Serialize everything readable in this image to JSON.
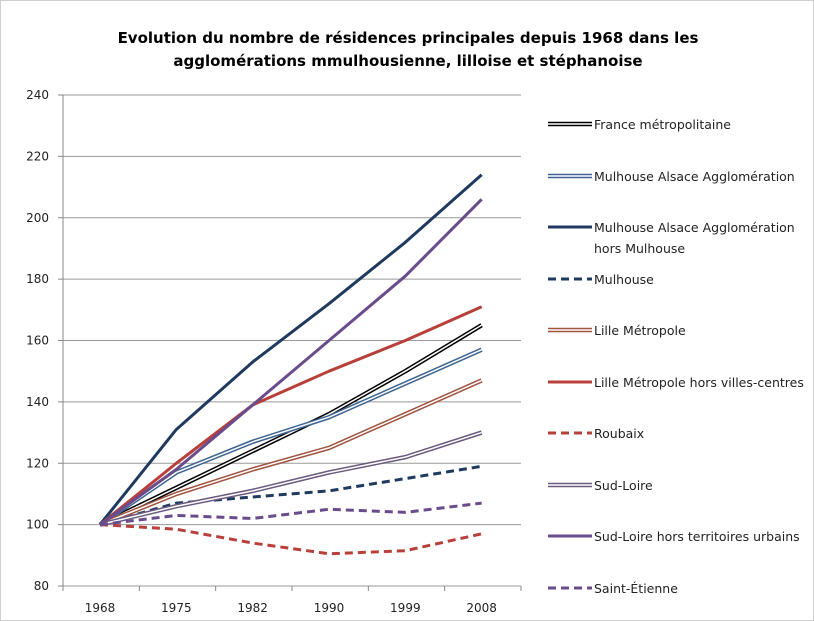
{
  "chart_data": {
    "type": "line",
    "title": "Evolution du nombre de résidences principales depuis 1968 dans les agglomérations mmulhousienne, lilloise et stéphanoise",
    "categories": [
      "1968",
      "1975",
      "1982",
      "1990",
      "1999",
      "2008"
    ],
    "ylim": [
      80,
      240
    ],
    "yticks": [
      80,
      100,
      120,
      140,
      160,
      180,
      200,
      220,
      240
    ],
    "grid": true,
    "legend": "right",
    "series": [
      {
        "name": "France métropolitaine",
        "color": "#000000",
        "style": "double",
        "values": [
          100,
          112,
          124,
          136,
          150,
          165
        ]
      },
      {
        "name": "Mulhouse Alsace Agglomération",
        "color": "#3d6491",
        "style": "double",
        "values": [
          100,
          117,
          127,
          135,
          146,
          157
        ]
      },
      {
        "name": "Mulhouse Alsace Agglomération hors Mulhouse",
        "color": "#1f3a5e",
        "style": "solid",
        "values": [
          100,
          131,
          153,
          172,
          192,
          214
        ]
      },
      {
        "name": "Mulhouse",
        "color": "#1f3a5e",
        "style": "dashed",
        "values": [
          100,
          107,
          109,
          111,
          115,
          119
        ]
      },
      {
        "name": "Lille Métropole",
        "color": "#a0533f",
        "style": "double",
        "values": [
          100,
          110,
          118,
          125,
          136,
          147
        ]
      },
      {
        "name": "Lille Métropole hors villes-centres",
        "color": "#b8403a",
        "style": "solid",
        "values": [
          100,
          120,
          139,
          150,
          160,
          171
        ]
      },
      {
        "name": "Roubaix",
        "color": "#b8403a",
        "style": "dashed",
        "values": [
          100,
          98.5,
          94,
          90.5,
          91.5,
          97
        ]
      },
      {
        "name": "Sud-Loire",
        "color": "#6b5a80",
        "style": "double",
        "values": [
          100,
          106,
          111,
          117,
          122,
          130
        ]
      },
      {
        "name": "Sud-Loire hors territoires urbains",
        "color": "#6a4c8c",
        "style": "solid",
        "values": [
          100,
          118,
          139,
          160,
          181,
          206
        ]
      },
      {
        "name": "Saint-Étienne",
        "color": "#6a4c8c",
        "style": "dashed",
        "values": [
          100,
          103,
          102,
          105,
          104,
          107
        ]
      }
    ]
  }
}
